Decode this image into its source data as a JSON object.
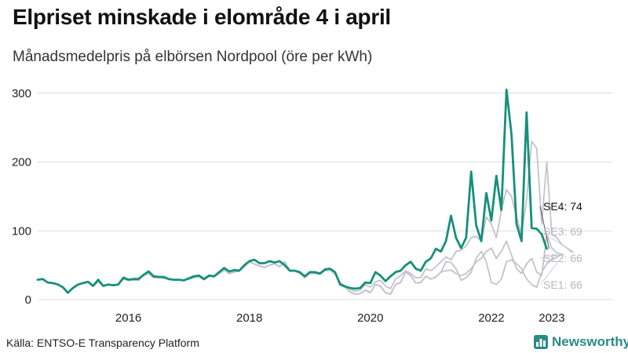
{
  "title": "Elpriset minskade i elområde 4 i april",
  "subtitle": "Månadsmedelpris på elbörsen Nordpool (öre per kWh)",
  "source": "Källa: ENTSO-E Transparency Platform",
  "brand": {
    "name": "Newsworthy",
    "icon": "bar-chart-icon"
  },
  "colors": {
    "se4": "#16907a",
    "others": "#c4c2cc",
    "grid": "#dcdcdc",
    "label_other": "#b8b6c2",
    "axis_text": "#222222"
  },
  "chart_data": {
    "type": "line",
    "title": "Elpriset minskade i elområde 4 i april",
    "subtitle": "Månadsmedelpris på elbörsen Nordpool (öre per kWh)",
    "xlabel": "",
    "ylabel": "",
    "xlim": [
      "2015-01",
      "2024-07"
    ],
    "ylim": [
      0,
      310
    ],
    "y_ticks": [
      0,
      100,
      200,
      300
    ],
    "x_ticks": [
      {
        "label": "2016",
        "value": "2016-07"
      },
      {
        "label": "2018",
        "value": "2018-07"
      },
      {
        "label": "2020",
        "value": "2020-07"
      },
      {
        "label": "2022",
        "value": "2022-07"
      },
      {
        "label": "2023",
        "value": "2023-07"
      }
    ],
    "grid": true,
    "legend": "end-labels",
    "x_start": "2015-01",
    "series": [
      {
        "name": "SE1",
        "end_label": "SE1: 66",
        "values": [
          29,
          30,
          25,
          24,
          22,
          18,
          10,
          17,
          22,
          24,
          26,
          20,
          26,
          20,
          22,
          21,
          22,
          30,
          28,
          29,
          28,
          35,
          38,
          32,
          32,
          31,
          30,
          29,
          29,
          28,
          30,
          32,
          33,
          29,
          34,
          33,
          38,
          43,
          38,
          40,
          42,
          48,
          55,
          52,
          49,
          47,
          50,
          52,
          48,
          55,
          43,
          42,
          38,
          32,
          38,
          38,
          37,
          42,
          43,
          37,
          25,
          18,
          11,
          8,
          9,
          14,
          10,
          22,
          20,
          10,
          8,
          22,
          25,
          40,
          35,
          24,
          25,
          34,
          30,
          33,
          40,
          55,
          54,
          45,
          28,
          32,
          40,
          60,
          70,
          55,
          25,
          22,
          30,
          55,
          58,
          52,
          45,
          30,
          22,
          18,
          40,
          52,
          58,
          62,
          66
        ]
      },
      {
        "name": "SE2",
        "end_label": "SE2: 66",
        "values": [
          29,
          30,
          25,
          24,
          22,
          18,
          10,
          17,
          22,
          24,
          26,
          20,
          26,
          20,
          22,
          21,
          22,
          30,
          28,
          29,
          28,
          35,
          38,
          32,
          32,
          31,
          30,
          29,
          29,
          28,
          30,
          32,
          33,
          29,
          34,
          33,
          38,
          43,
          38,
          40,
          42,
          48,
          55,
          52,
          49,
          47,
          50,
          52,
          48,
          55,
          43,
          42,
          38,
          32,
          38,
          38,
          37,
          42,
          43,
          37,
          25,
          18,
          11,
          8,
          9,
          14,
          10,
          22,
          20,
          10,
          8,
          22,
          25,
          40,
          35,
          24,
          25,
          34,
          30,
          33,
          40,
          42,
          43,
          38,
          35,
          38,
          45,
          55,
          60,
          70,
          75,
          60,
          70,
          85,
          65,
          45,
          38,
          52,
          60,
          40,
          35,
          95,
          75,
          68,
          66
        ]
      },
      {
        "name": "SE3",
        "end_label": "SE3: 69",
        "values": [
          29,
          30,
          25,
          24,
          22,
          18,
          10,
          17,
          22,
          24,
          26,
          20,
          26,
          20,
          22,
          21,
          22,
          30,
          28,
          29,
          28,
          35,
          38,
          32,
          32,
          31,
          30,
          29,
          29,
          28,
          30,
          32,
          33,
          29,
          34,
          33,
          38,
          43,
          38,
          40,
          42,
          48,
          55,
          52,
          49,
          47,
          50,
          52,
          48,
          55,
          43,
          42,
          38,
          32,
          38,
          38,
          37,
          42,
          43,
          37,
          25,
          20,
          15,
          12,
          14,
          22,
          18,
          26,
          28,
          20,
          16,
          30,
          35,
          42,
          38,
          32,
          32,
          45,
          42,
          48,
          55,
          62,
          58,
          70,
          72,
          78,
          90,
          92,
          85,
          120,
          110,
          90,
          130,
          160,
          150,
          120,
          95,
          145,
          230,
          220,
          110,
          200,
          95,
          90,
          80,
          75,
          69
        ]
      },
      {
        "name": "SE4",
        "end_label": "SE4: 74",
        "values": [
          29,
          30,
          25,
          24,
          22,
          18,
          10,
          17,
          22,
          24,
          26,
          20,
          29,
          20,
          22,
          21,
          22,
          32,
          29,
          30,
          30,
          36,
          41,
          34,
          33,
          33,
          30,
          29,
          29,
          28,
          31,
          34,
          35,
          30,
          35,
          34,
          40,
          46,
          41,
          43,
          42,
          50,
          56,
          58,
          53,
          53,
          56,
          54,
          56,
          50,
          42,
          42,
          40,
          34,
          40,
          40,
          38,
          44,
          45,
          40,
          22,
          19,
          17,
          16,
          17,
          25,
          24,
          40,
          35,
          27,
          34,
          40,
          42,
          50,
          55,
          45,
          42,
          55,
          60,
          74,
          70,
          85,
          122,
          90,
          75,
          90,
          186,
          108,
          85,
          155,
          115,
          180,
          130,
          305,
          240,
          110,
          85,
          272,
          104,
          103,
          95,
          74
        ]
      }
    ]
  }
}
